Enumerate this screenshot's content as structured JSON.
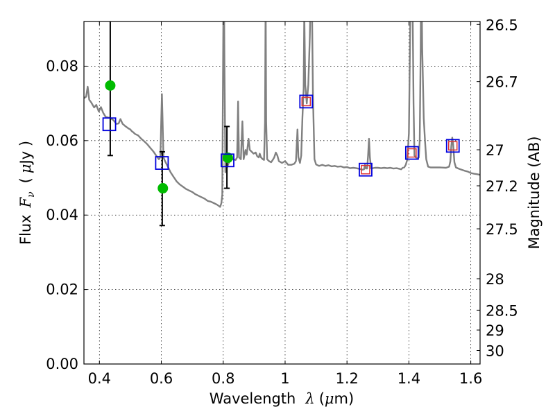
{
  "chart_data": {
    "type": "line",
    "xlabel": "Wavelength",
    "xlabel_sym": "λ",
    "xlabel_unit_open": "(",
    "xlabel_unit_mu": "μ",
    "xlabel_unit_rest": "m)",
    "ylabel": "Flux",
    "ylabel_sym": "F",
    "ylabel_sub": "ν",
    "ylabel_unit_open": "(",
    "ylabel_unit_mu": "μ",
    "ylabel_unit_rest": "Jy )",
    "y2label": "Magnitude (AB)",
    "xlim": [
      0.35,
      1.63
    ],
    "ylim": [
      0.0,
      0.092
    ],
    "grid": true,
    "x_ticks": [
      {
        "value": 0.4,
        "label": "0.4"
      },
      {
        "value": 0.6,
        "label": "0.6"
      },
      {
        "value": 0.8,
        "label": "0.8"
      },
      {
        "value": 1.0,
        "label": "1"
      },
      {
        "value": 1.2,
        "label": "1.2"
      },
      {
        "value": 1.4,
        "label": "1.4"
      },
      {
        "value": 1.6,
        "label": "1.6"
      }
    ],
    "y_ticks": [
      {
        "value": 0.0,
        "label": "0.00"
      },
      {
        "value": 0.02,
        "label": "0.02"
      },
      {
        "value": 0.04,
        "label": "0.04"
      },
      {
        "value": 0.06,
        "label": "0.06"
      },
      {
        "value": 0.08,
        "label": "0.08"
      }
    ],
    "y2_ticks": [
      {
        "mag": 26.5,
        "label": "26.5"
      },
      {
        "mag": 26.7,
        "label": "26.7"
      },
      {
        "mag": 27.0,
        "label": "27"
      },
      {
        "mag": 27.2,
        "label": "27.2"
      },
      {
        "mag": 27.5,
        "label": "27.5"
      },
      {
        "mag": 28.0,
        "label": "28"
      },
      {
        "mag": 28.5,
        "label": "28.5"
      },
      {
        "mag": 29.0,
        "label": "29"
      },
      {
        "mag": 30.0,
        "label": "30"
      }
    ],
    "series": [
      {
        "name": "model SED",
        "kind": "line",
        "color": "#808080",
        "points": [
          [
            0.35,
            0.0714
          ],
          [
            0.357,
            0.0718
          ],
          [
            0.362,
            0.0745
          ],
          [
            0.367,
            0.071
          ],
          [
            0.374,
            0.0702
          ],
          [
            0.383,
            0.0689
          ],
          [
            0.39,
            0.0696
          ],
          [
            0.398,
            0.0678
          ],
          [
            0.405,
            0.069
          ],
          [
            0.412,
            0.0675
          ],
          [
            0.42,
            0.0664
          ],
          [
            0.428,
            0.0662
          ],
          [
            0.435,
            0.0661
          ],
          [
            0.445,
            0.0655
          ],
          [
            0.455,
            0.0645
          ],
          [
            0.462,
            0.0646
          ],
          [
            0.468,
            0.0658
          ],
          [
            0.475,
            0.0645
          ],
          [
            0.485,
            0.0638
          ],
          [
            0.495,
            0.0632
          ],
          [
            0.5,
            0.063
          ],
          [
            0.505,
            0.0625
          ],
          [
            0.51,
            0.0622
          ],
          [
            0.515,
            0.0618
          ],
          [
            0.525,
            0.0614
          ],
          [
            0.535,
            0.0605
          ],
          [
            0.545,
            0.0598
          ],
          [
            0.555,
            0.059
          ],
          [
            0.565,
            0.058
          ],
          [
            0.575,
            0.057
          ],
          [
            0.585,
            0.0558
          ],
          [
            0.592,
            0.055
          ],
          [
            0.597,
            0.0556
          ],
          [
            0.6,
            0.066
          ],
          [
            0.602,
            0.0725
          ],
          [
            0.604,
            0.066
          ],
          [
            0.607,
            0.0555
          ],
          [
            0.612,
            0.0545
          ],
          [
            0.62,
            0.0532
          ],
          [
            0.63,
            0.0515
          ],
          [
            0.64,
            0.0502
          ],
          [
            0.65,
            0.049
          ],
          [
            0.66,
            0.0482
          ],
          [
            0.67,
            0.0476
          ],
          [
            0.68,
            0.047
          ],
          [
            0.69,
            0.0466
          ],
          [
            0.7,
            0.0462
          ],
          [
            0.71,
            0.0456
          ],
          [
            0.72,
            0.0452
          ],
          [
            0.73,
            0.0448
          ],
          [
            0.74,
            0.0444
          ],
          [
            0.75,
            0.0438
          ],
          [
            0.76,
            0.0436
          ],
          [
            0.77,
            0.0432
          ],
          [
            0.78,
            0.0428
          ],
          [
            0.785,
            0.0425
          ],
          [
            0.79,
            0.0422
          ],
          [
            0.794,
            0.0432
          ],
          [
            0.797,
            0.0455
          ],
          [
            0.8,
            0.085
          ],
          [
            0.802,
            0.11
          ],
          [
            0.804,
            0.082
          ],
          [
            0.807,
            0.0515
          ],
          [
            0.812,
            0.0528
          ],
          [
            0.818,
            0.054
          ],
          [
            0.825,
            0.055
          ],
          [
            0.832,
            0.055
          ],
          [
            0.84,
            0.0548
          ],
          [
            0.845,
            0.0555
          ],
          [
            0.848,
            0.0705
          ],
          [
            0.851,
            0.0555
          ],
          [
            0.857,
            0.055
          ],
          [
            0.862,
            0.0652
          ],
          [
            0.866,
            0.055
          ],
          [
            0.872,
            0.0575
          ],
          [
            0.876,
            0.0562
          ],
          [
            0.882,
            0.0605
          ],
          [
            0.886,
            0.0575
          ],
          [
            0.892,
            0.057
          ],
          [
            0.898,
            0.0565
          ],
          [
            0.905,
            0.0568
          ],
          [
            0.91,
            0.0558
          ],
          [
            0.915,
            0.0555
          ],
          [
            0.918,
            0.0565
          ],
          [
            0.922,
            0.0555
          ],
          [
            0.928,
            0.055
          ],
          [
            0.932,
            0.0548
          ],
          [
            0.935,
            0.065
          ],
          [
            0.937,
            0.1
          ],
          [
            0.939,
            0.065
          ],
          [
            0.942,
            0.055
          ],
          [
            0.948,
            0.0545
          ],
          [
            0.955,
            0.0542
          ],
          [
            0.96,
            0.0548
          ],
          [
            0.965,
            0.0555
          ],
          [
            0.97,
            0.0568
          ],
          [
            0.975,
            0.056
          ],
          [
            0.98,
            0.0545
          ],
          [
            0.99,
            0.054
          ],
          [
            1.0,
            0.0545
          ],
          [
            1.01,
            0.0535
          ],
          [
            1.02,
            0.0535
          ],
          [
            1.03,
            0.0538
          ],
          [
            1.035,
            0.0545
          ],
          [
            1.04,
            0.063
          ],
          [
            1.043,
            0.0555
          ],
          [
            1.048,
            0.054
          ],
          [
            1.052,
            0.056
          ],
          [
            1.056,
            0.066
          ],
          [
            1.06,
            0.074
          ],
          [
            1.062,
            0.095
          ],
          [
            1.065,
            0.075
          ],
          [
            1.07,
            0.07
          ],
          [
            1.075,
            0.075
          ],
          [
            1.08,
            0.088
          ],
          [
            1.085,
            0.11
          ],
          [
            1.09,
            0.072
          ],
          [
            1.095,
            0.055
          ],
          [
            1.1,
            0.0536
          ],
          [
            1.11,
            0.0532
          ],
          [
            1.12,
            0.0535
          ],
          [
            1.13,
            0.0532
          ],
          [
            1.14,
            0.0534
          ],
          [
            1.15,
            0.0531
          ],
          [
            1.16,
            0.0532
          ],
          [
            1.17,
            0.053
          ],
          [
            1.18,
            0.0531
          ],
          [
            1.19,
            0.0528
          ],
          [
            1.2,
            0.0529
          ],
          [
            1.21,
            0.0526
          ],
          [
            1.22,
            0.0527
          ],
          [
            1.23,
            0.0526
          ],
          [
            1.24,
            0.0524
          ],
          [
            1.25,
            0.0522
          ],
          [
            1.255,
            0.0523
          ],
          [
            1.258,
            0.0535
          ],
          [
            1.261,
            0.0525
          ],
          [
            1.265,
            0.0525
          ],
          [
            1.268,
            0.0558
          ],
          [
            1.271,
            0.0605
          ],
          [
            1.274,
            0.0555
          ],
          [
            1.278,
            0.0525
          ],
          [
            1.29,
            0.0527
          ],
          [
            1.3,
            0.0527
          ],
          [
            1.31,
            0.0526
          ],
          [
            1.32,
            0.0527
          ],
          [
            1.33,
            0.0526
          ],
          [
            1.34,
            0.0527
          ],
          [
            1.35,
            0.0525
          ],
          [
            1.36,
            0.0526
          ],
          [
            1.37,
            0.0524
          ],
          [
            1.375,
            0.0523
          ],
          [
            1.38,
            0.0527
          ],
          [
            1.385,
            0.0528
          ],
          [
            1.39,
            0.0535
          ],
          [
            1.395,
            0.055
          ],
          [
            1.4,
            0.062
          ],
          [
            1.405,
            0.095
          ],
          [
            1.41,
            0.112
          ],
          [
            1.415,
            0.07
          ],
          [
            1.418,
            0.056
          ],
          [
            1.422,
            0.0555
          ],
          [
            1.428,
            0.0552
          ],
          [
            1.432,
            0.0555
          ],
          [
            1.435,
            0.06
          ],
          [
            1.438,
            0.085
          ],
          [
            1.44,
            0.11
          ],
          [
            1.443,
            0.085
          ],
          [
            1.448,
            0.066
          ],
          [
            1.452,
            0.06
          ],
          [
            1.456,
            0.055
          ],
          [
            1.462,
            0.053
          ],
          [
            1.47,
            0.0528
          ],
          [
            1.48,
            0.0528
          ],
          [
            1.5,
            0.0528
          ],
          [
            1.52,
            0.0527
          ],
          [
            1.53,
            0.053
          ],
          [
            1.534,
            0.0545
          ],
          [
            1.537,
            0.0585
          ],
          [
            1.54,
            0.0608
          ],
          [
            1.543,
            0.059
          ],
          [
            1.547,
            0.0542
          ],
          [
            1.552,
            0.0528
          ],
          [
            1.56,
            0.0525
          ],
          [
            1.57,
            0.0522
          ],
          [
            1.58,
            0.0519
          ],
          [
            1.59,
            0.0517
          ],
          [
            1.6,
            0.0513
          ],
          [
            1.61,
            0.0511
          ],
          [
            1.62,
            0.051
          ],
          [
            1.63,
            0.0508
          ]
        ]
      },
      {
        "name": "observed photometry",
        "kind": "errorbar",
        "color": "#000000",
        "points": [
          {
            "x": 0.435,
            "y": null,
            "lo": 0.056,
            "hi": 0.1
          },
          {
            "x": 0.603,
            "y": null,
            "lo": 0.0372,
            "hi": 0.057
          },
          {
            "x": 0.812,
            "y": null,
            "lo": 0.0472,
            "hi": 0.0638
          }
        ]
      },
      {
        "name": "observed fluxes",
        "kind": "scatter",
        "marker": "circle",
        "color": "#00bb00",
        "points": [
          [
            0.435,
            0.0748
          ],
          [
            0.605,
            0.0472
          ],
          [
            0.815,
            0.0554
          ]
        ]
      },
      {
        "name": "model synthetic fluxes",
        "kind": "scatter",
        "marker": "square-open",
        "color": "#0000dd",
        "points": [
          [
            0.432,
            0.0644
          ],
          [
            0.602,
            0.054
          ],
          [
            0.814,
            0.0547
          ],
          [
            1.068,
            0.0705
          ],
          [
            1.26,
            0.0522
          ],
          [
            1.41,
            0.0567
          ],
          [
            1.542,
            0.0586
          ]
        ]
      },
      {
        "name": "model fluxes (red)",
        "kind": "scatter",
        "marker": "square-open-small",
        "color": "#dd3333",
        "points": [
          [
            1.068,
            0.0705
          ],
          [
            1.26,
            0.0522
          ],
          [
            1.41,
            0.0567
          ],
          [
            1.542,
            0.0586
          ]
        ]
      }
    ]
  }
}
